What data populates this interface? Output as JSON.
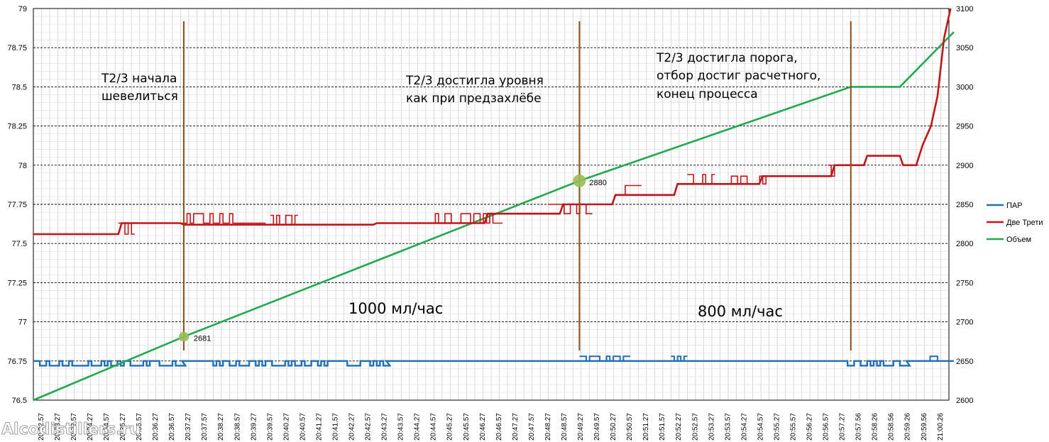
{
  "chart_data": {
    "type": "line",
    "y_left": {
      "min": 76.5,
      "max": 79,
      "ticks": [
        "76.5",
        "76.75",
        "77",
        "77.25",
        "77.5",
        "77.75",
        "78",
        "78.25",
        "78.5",
        "78.75",
        "79"
      ]
    },
    "y_right": {
      "min": 2600,
      "max": 3100,
      "ticks": [
        "2600",
        "2650",
        "2700",
        "2750",
        "2800",
        "2850",
        "2900",
        "2950",
        "3000",
        "3050",
        "3100"
      ]
    },
    "x_labels": [
      "20:32.57",
      "20:33.27",
      "20:33.57",
      "20:34.27",
      "20:34.57",
      "20:35.27",
      "20:35.57",
      "20:36.27",
      "20:36.57",
      "20:37.27",
      "20:37.57",
      "20:38.27",
      "20:38.57",
      "20:39.27",
      "20:39.57",
      "20:40.27",
      "20:40.57",
      "20:41.27",
      "20:41.57",
      "20:42.27",
      "20:42.57",
      "20:43.27",
      "20:43.57",
      "20:44.27",
      "20:44.57",
      "20:45.27",
      "20:45.57",
      "20:46.27",
      "20:46.57",
      "20:47.27",
      "20:47.57",
      "20:48.27",
      "20:48.57",
      "20:49.27",
      "20:49.57",
      "20:50.27",
      "20:50.57",
      "20:51.27",
      "20:51.57",
      "20:52.27",
      "20:52.57",
      "20:53.27",
      "20:53.57",
      "20:54.27",
      "20:54.57",
      "20:55.27",
      "20:55.57",
      "20:56.27",
      "20:56.57",
      "20:57.27",
      "20:57.56",
      "20:58.26",
      "20:58.56",
      "20:59.26",
      "20:59.56",
      "21:00.26"
    ],
    "grid": true,
    "legend_position": "right",
    "series": [
      {
        "name": "ПАР",
        "axis": "left",
        "color": "#1f6fb4",
        "base": 76.75,
        "dips": [
          [
            0,
            9.1,
            76.72
          ],
          [
            9.1,
            11,
            76.75
          ],
          [
            11,
            21.6,
            76.72
          ],
          [
            21.6,
            49.2,
            76.75
          ],
          [
            49.2,
            53.4,
            76.72
          ],
          [
            53.4,
            56.3,
            76.75
          ]
        ],
        "spikes": [
          [
            33.4,
            36.3,
            76.78
          ],
          [
            39,
            39.8,
            76.78
          ],
          [
            54.4,
            55.3,
            76.78
          ]
        ]
      },
      {
        "name": "Две Трети",
        "axis": "left",
        "color": "#c0161b",
        "points": [
          [
            0,
            77.56
          ],
          [
            5.2,
            77.56
          ],
          [
            5.4,
            77.63
          ],
          [
            9.0,
            77.63
          ],
          [
            9.2,
            77.62
          ],
          [
            20.8,
            77.62
          ],
          [
            21.0,
            77.63
          ],
          [
            27.6,
            77.63
          ],
          [
            27.8,
            77.69
          ],
          [
            32.2,
            77.69
          ],
          [
            32.4,
            77.75
          ],
          [
            35.4,
            77.75
          ],
          [
            35.6,
            77.81
          ],
          [
            39.2,
            77.81
          ],
          [
            39.4,
            77.88
          ],
          [
            44.4,
            77.88
          ],
          [
            44.6,
            77.93
          ],
          [
            48.8,
            77.93
          ],
          [
            49.0,
            78.0
          ],
          [
            50.8,
            78.0
          ],
          [
            51.0,
            78.06
          ],
          [
            53.0,
            78.06
          ],
          [
            53.2,
            78.0
          ],
          [
            54.0,
            78.0
          ],
          [
            54.4,
            78.13
          ],
          [
            54.9,
            78.25
          ],
          [
            55.3,
            78.44
          ],
          [
            55.7,
            78.81
          ],
          [
            56.1,
            79.0
          ]
        ],
        "noise": [
          [
            5.2,
            6.0
          ],
          [
            9.0,
            14.0
          ],
          [
            14.5,
            16.0
          ],
          [
            24.0,
            28.5
          ],
          [
            31.5,
            34.0
          ],
          [
            36.0,
            37.0
          ],
          [
            40.0,
            41.5
          ],
          [
            42.5,
            45.0
          ],
          [
            48.6,
            49.2
          ]
        ]
      },
      {
        "name": "Объем",
        "axis": "right",
        "color": "#22a84e",
        "points": [
          [
            0,
            2600
          ],
          [
            9.2,
            2681
          ],
          [
            33.4,
            2880
          ],
          [
            50.0,
            3000
          ],
          [
            53.0,
            3000
          ],
          [
            56.3,
            3070
          ]
        ]
      }
    ],
    "markers": [
      {
        "x": 9.2,
        "value": 2681,
        "label": "2681"
      },
      {
        "x": 33.4,
        "value": 2880,
        "label": "2880"
      }
    ],
    "vlines": [
      9.2,
      33.4,
      50.0
    ]
  },
  "annotations": {
    "a1": [
      "T2/3 начала",
      "шевелиться"
    ],
    "a2": [
      "T2/3 достигла уровня",
      "как при предзахлёбе"
    ],
    "a3": [
      "T2/3 достигла порога,",
      "отбор достиг расчетного,",
      "конец процесса"
    ],
    "rate1": "1000 мл/час",
    "rate2": "800 мл/час"
  },
  "watermark": "Alcodistillers.ru"
}
